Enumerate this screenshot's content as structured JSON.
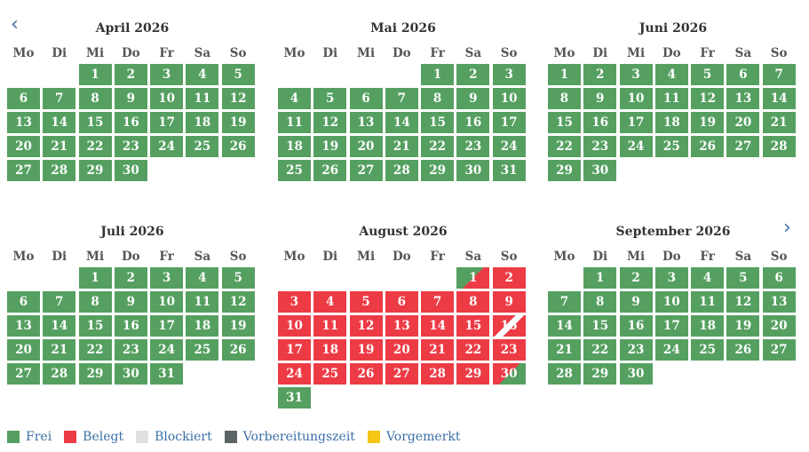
{
  "navigation": {
    "prev_icon": "‹",
    "next_icon": "›"
  },
  "weekdays": [
    "Mo",
    "Di",
    "Mi",
    "Do",
    "Fr",
    "Sa",
    "So"
  ],
  "colors": {
    "free": "#55a061",
    "booked": "#ed3b45",
    "blocked": "#e0e0e0",
    "preparation": "#5c6466",
    "reserved": "#f5c518"
  },
  "months": [
    {
      "title": "April 2026",
      "offset": 2,
      "days": 30,
      "states": {}
    },
    {
      "title": "Mai 2026",
      "offset": 4,
      "days": 31,
      "states": {}
    },
    {
      "title": "Juni 2026",
      "offset": 0,
      "days": 30,
      "states": {}
    },
    {
      "title": "Juli 2026",
      "offset": 2,
      "days": 31,
      "states": {}
    },
    {
      "title": "August 2026",
      "offset": 5,
      "days": 31,
      "states": {
        "1": "arrival",
        "2": "booked",
        "3": "booked",
        "4": "booked",
        "5": "booked",
        "6": "booked",
        "7": "booked",
        "8": "booked",
        "9": "booked",
        "10": "booked",
        "11": "booked",
        "12": "booked",
        "13": "booked",
        "14": "booked",
        "15": "booked",
        "16": "changeover",
        "17": "booked",
        "18": "booked",
        "19": "booked",
        "20": "booked",
        "21": "booked",
        "22": "booked",
        "23": "booked",
        "24": "booked",
        "25": "booked",
        "26": "booked",
        "27": "booked",
        "28": "booked",
        "29": "booked",
        "30": "departure"
      }
    },
    {
      "title": "September 2026",
      "offset": 1,
      "days": 30,
      "states": {}
    }
  ],
  "legend": [
    {
      "key": "free",
      "label": "Frei",
      "color": "#55a061"
    },
    {
      "key": "booked",
      "label": "Belegt",
      "color": "#ed3b45"
    },
    {
      "key": "blocked",
      "label": "Blockiert",
      "color": "#e0e0e0"
    },
    {
      "key": "preparation",
      "label": "Vorbereitungszeit",
      "color": "#5c6466"
    },
    {
      "key": "reserved",
      "label": "Vorgemerkt",
      "color": "#f5c518"
    }
  ]
}
